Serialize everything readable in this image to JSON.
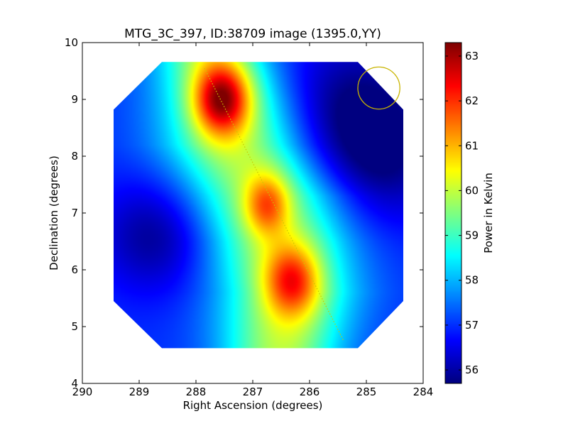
{
  "chart_data": {
    "type": "heatmap",
    "title": "MTG_3C_397, ID:38709 image (1395.0,YY)",
    "xlabel": "Right Ascension (degrees)",
    "ylabel": "Declination (degrees)",
    "xlim": [
      290,
      284
    ],
    "ylim": [
      4,
      10
    ],
    "x_ticks": [
      "290",
      "289",
      "288",
      "287",
      "286",
      "285",
      "284"
    ],
    "y_ticks": [
      "4",
      "5",
      "6",
      "7",
      "8",
      "9",
      "10"
    ],
    "colorbar": {
      "label": "Power in Kelvin",
      "range": [
        55.7,
        63.3
      ],
      "colormap": "jet",
      "ticks": [
        "56",
        "57",
        "58",
        "59",
        "60",
        "61",
        "62",
        "63"
      ]
    },
    "image_extent": {
      "ra": [
        289.45,
        284.35
      ],
      "dec": [
        4.62,
        9.66
      ],
      "clipped_corner_polygon": [
        [
          288.6,
          9.66
        ],
        [
          285.15,
          9.66
        ],
        [
          284.35,
          8.82
        ],
        [
          284.35,
          5.45
        ],
        [
          285.15,
          4.62
        ],
        [
          288.6,
          4.62
        ],
        [
          289.45,
          5.45
        ],
        [
          289.45,
          8.82
        ]
      ]
    },
    "background_level_K": 57.0,
    "sources": [
      {
        "ra": 287.55,
        "dec": 9.0,
        "peak_K": 63.3,
        "sigma_ra": 0.35,
        "sigma_dec": 0.45
      },
      {
        "ra": 286.75,
        "dec": 7.15,
        "peak_K": 61.8,
        "sigma_ra": 0.28,
        "sigma_dec": 0.38
      },
      {
        "ra": 286.3,
        "dec": 5.8,
        "peak_K": 62.3,
        "sigma_ra": 0.35,
        "sigma_dec": 0.45
      }
    ],
    "ridge": [
      {
        "dec": 4.6,
        "ra": 286.5,
        "width": 0.75
      },
      {
        "dec": 5.6,
        "ra": 286.4,
        "width": 0.85
      },
      {
        "dec": 6.5,
        "ra": 286.55,
        "width": 0.9
      },
      {
        "dec": 7.3,
        "ra": 286.8,
        "width": 0.95
      },
      {
        "dec": 8.2,
        "ra": 287.3,
        "width": 0.9
      },
      {
        "dec": 9.0,
        "ra": 287.5,
        "width": 0.8
      },
      {
        "dec": 9.7,
        "ra": 287.7,
        "width": 0.7
      }
    ],
    "lows": [
      {
        "ra": 288.7,
        "dec": 6.6,
        "depth_K": 1.2,
        "sigma": 0.7
      },
      {
        "ra": 285.2,
        "dec": 8.8,
        "depth_K": 1.3,
        "sigma": 0.9
      },
      {
        "ra": 284.7,
        "dec": 7.8,
        "depth_K": 0.9,
        "sigma": 0.8
      }
    ],
    "scan_path": {
      "start": [
        287.85,
        9.55
      ],
      "end": [
        285.4,
        4.75
      ],
      "color": "#c8c800"
    },
    "beam_circle": {
      "ra": 284.78,
      "dec": 9.2,
      "radius_deg": 0.37,
      "color": "#c8b400"
    }
  }
}
